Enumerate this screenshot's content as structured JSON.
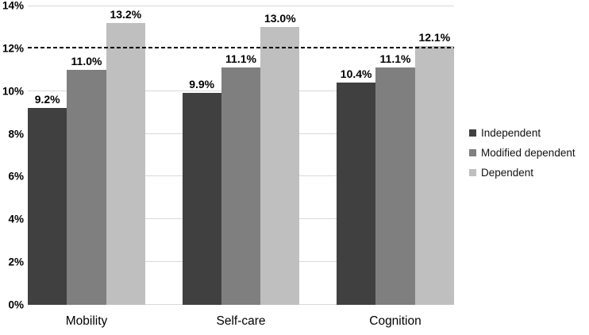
{
  "chart_data": {
    "type": "bar",
    "title": "",
    "categories": [
      "Mobility",
      "Self-care",
      "Cognition"
    ],
    "series": [
      {
        "name": "Independent",
        "color": "#404040",
        "values": [
          9.2,
          9.9,
          10.4
        ],
        "labels": [
          "9.2%",
          "9.9%",
          "10.4%"
        ]
      },
      {
        "name": "Modified dependent",
        "color": "#7f7f7f",
        "values": [
          11.0,
          11.1,
          11.1
        ],
        "labels": [
          "11.0%",
          "11.1%",
          "11.1%"
        ]
      },
      {
        "name": "Dependent",
        "color": "#bfbfbf",
        "values": [
          13.2,
          13.0,
          12.1
        ],
        "labels": [
          "13.2%",
          "13.0%",
          "12.1%"
        ]
      }
    ],
    "xlabel": "",
    "ylabel": "",
    "ylim": [
      0,
      14
    ],
    "y_ticks": [
      "0%",
      "2%",
      "4%",
      "6%",
      "8%",
      "10%",
      "12%",
      "14%"
    ],
    "grid": true,
    "gridline_color": "#d9d9d9",
    "reference_line": {
      "value": 12,
      "style": "dashed",
      "color": "#000000"
    },
    "legend": {
      "position": "right",
      "entries": [
        "Independent",
        "Modified dependent",
        "Dependent"
      ]
    },
    "background": "#ffffff"
  }
}
